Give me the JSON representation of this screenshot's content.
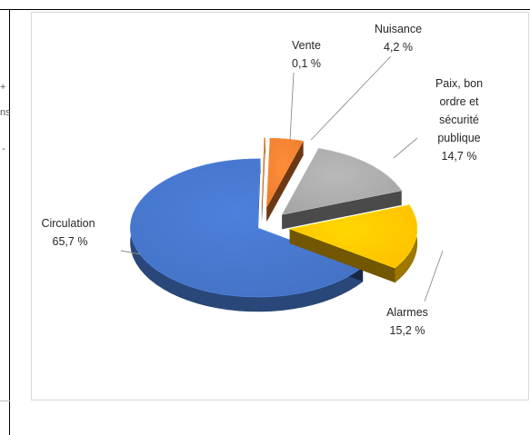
{
  "stray_text": [
    "+",
    "ns",
    "-"
  ],
  "chart_data": {
    "type": "pie",
    "title": "",
    "slices": [
      {
        "label": "Circulation",
        "value": 65.7,
        "value_label": "65,7 %",
        "color": "#4472c4"
      },
      {
        "label": "Vente",
        "value": 0.1,
        "value_label": "0,1 %",
        "color": "#ed7d31"
      },
      {
        "label": "Nuisance",
        "value": 4.2,
        "value_label": "4,2 %",
        "color": "#ed7d31"
      },
      {
        "label": "Paix, bon ordre et sécurité publique",
        "value": 14.7,
        "value_label": "14,7 %",
        "color": "#a5a5a5"
      },
      {
        "label": "Alarmes",
        "value": 15.2,
        "value_label": "15,2 %",
        "color": "#ffc000"
      }
    ],
    "legend": "none",
    "style": "3d-exploded"
  }
}
